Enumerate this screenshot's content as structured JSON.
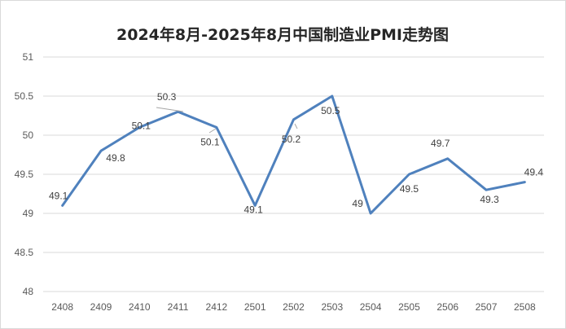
{
  "chart_data": {
    "type": "line",
    "title": "2024年8月-2025年8月中国制造业PMI走势图",
    "xlabel": "",
    "ylabel": "",
    "categories": [
      "2408",
      "2409",
      "2410",
      "2411",
      "2412",
      "2501",
      "2502",
      "2503",
      "2504",
      "2505",
      "2506",
      "2507",
      "2508"
    ],
    "series": [
      {
        "values": [
          49.1,
          49.8,
          50.1,
          50.3,
          50.1,
          49.1,
          50.2,
          50.5,
          49.0,
          49.5,
          49.7,
          49.3,
          49.4
        ],
        "data_labels": [
          "49.1",
          "49.8",
          "50.1",
          "50.3",
          "50.1",
          "49.1",
          "50.2",
          "50.5",
          "49",
          "49.5",
          "49.7",
          "49.3",
          "49.4"
        ],
        "color": "#4f81bd"
      }
    ],
    "ylim": [
      48,
      51
    ],
    "y_ticks": [
      "48",
      "48.5",
      "49",
      "49.5",
      "50",
      "50.5",
      "51"
    ],
    "grid": true,
    "grid_color": "#d9d9d9",
    "legend": "none"
  }
}
